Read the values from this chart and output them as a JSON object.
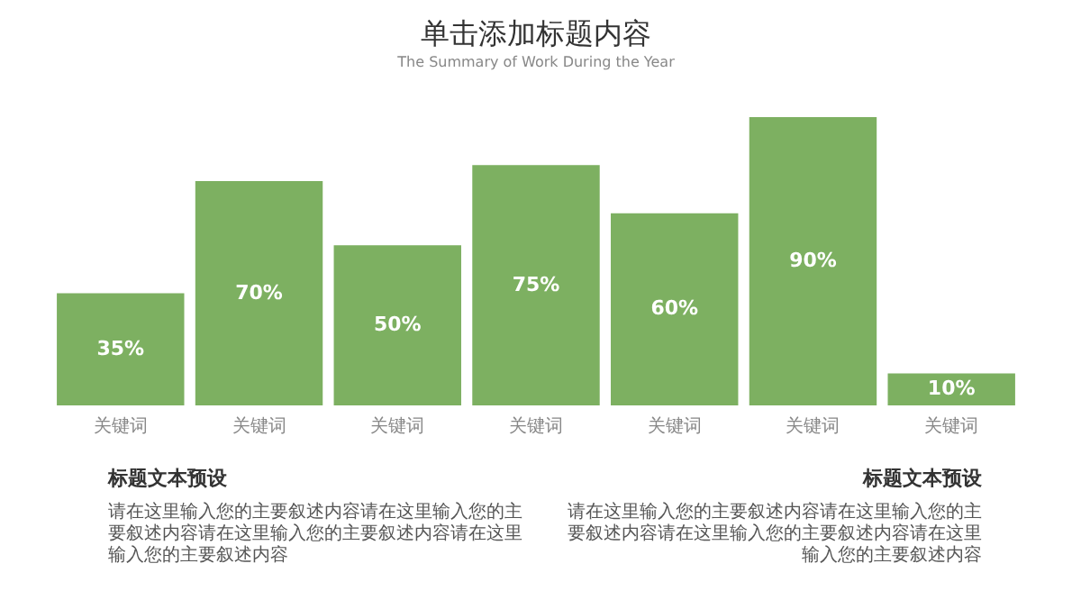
{
  "chart_data": {
    "type": "bar",
    "title": "单击添加标题内容",
    "subtitle": "The Summary of Work During the Year",
    "categories": [
      "关键词",
      "关键词",
      "关键词",
      "关键词",
      "关键词",
      "关键词",
      "关键词"
    ],
    "values": [
      35,
      70,
      50,
      75,
      60,
      90,
      10
    ],
    "value_labels": [
      "35%",
      "70%",
      "50%",
      "75%",
      "60%",
      "90%",
      "10%"
    ],
    "color": "#7db061",
    "annotations": [
      "标题文本预设",
      "请在这里输入您的主要叙述内容请在这里输入您的主要叙述内容请在这里输入您的主要叙述内容请在这里输入您的主要叙述内容",
      "标题文本预设",
      "请在这里输入您的主要叙述内容请在这里输入您的主要叙述内容请在这里输入您的主要叙述内容请在这里输入您的主要叙述内容"
    ]
  }
}
